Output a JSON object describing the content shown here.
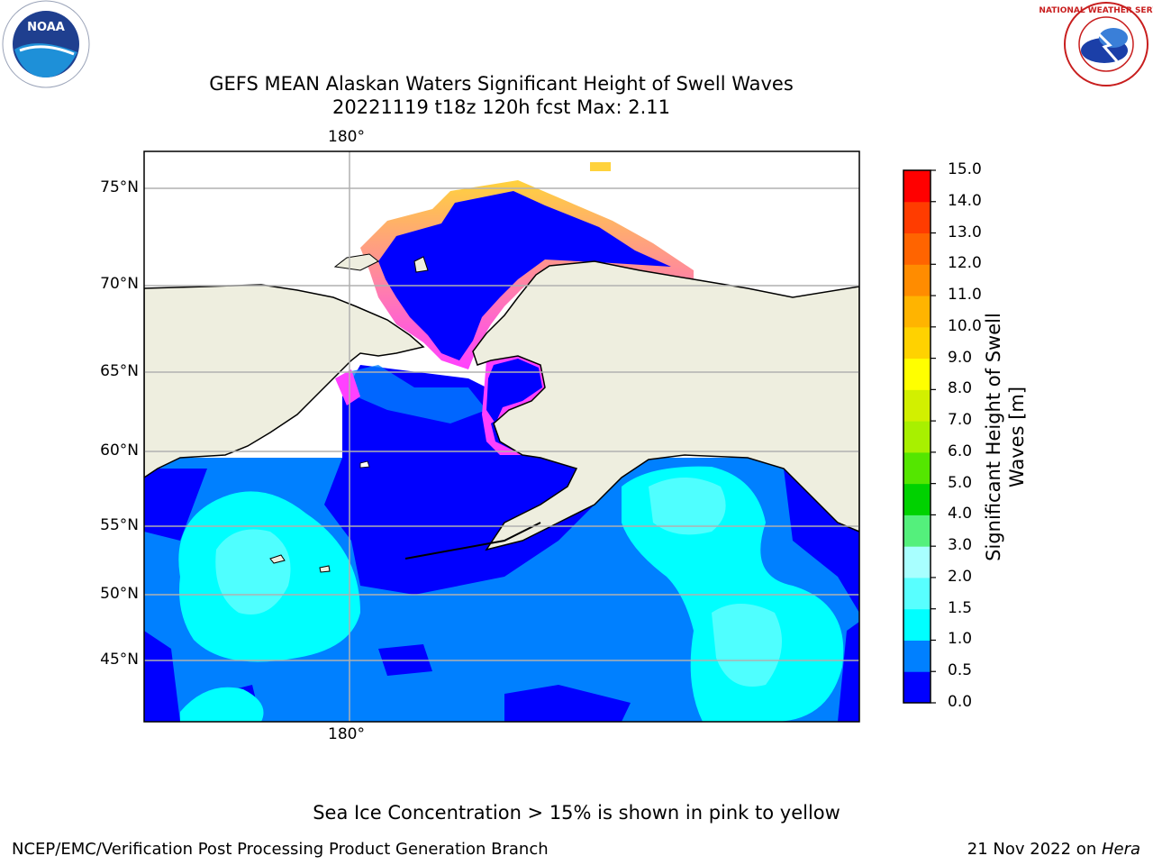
{
  "title": {
    "line1": "GEFS MEAN Alaskan Waters Significant Height of Swell Waves",
    "line2": "20221119 t18z 120h fcst   Max: 2.11"
  },
  "map": {
    "lon_labels": [
      "180°",
      "180°"
    ],
    "lat_labels": [
      "75°N",
      "70°N",
      "65°N",
      "60°N",
      "55°N",
      "50°N",
      "45°N"
    ]
  },
  "colorbar": {
    "label": "Significant Height of Swell Waves [m]",
    "label_line1": "Significant Height of Swell",
    "label_line2": "Waves [m]",
    "ticks": [
      "15.0",
      "14.0",
      "13.0",
      "12.0",
      "11.0",
      "10.0",
      "9.0",
      "8.0",
      "7.0",
      "6.0",
      "5.0",
      "4.0",
      "3.0",
      "2.0",
      "1.5",
      "1.0",
      "0.5",
      "0.0"
    ],
    "colors": [
      "#0000ff",
      "#0080ff",
      "#00ffff",
      "#58ffff",
      "#a8ffff",
      "#54f07c",
      "#00d200",
      "#54e600",
      "#a8f000",
      "#d2f000",
      "#ffff00",
      "#ffd200",
      "#ffb400",
      "#ff8c00",
      "#ff6400",
      "#ff3c00",
      "#ff0000"
    ]
  },
  "note": "Sea Ice Concentration > 15% is shown in pink to yellow",
  "footer": {
    "left": "NCEP/EMC/Verification Post Processing Product Generation Branch",
    "right_date": "21 Nov 2022 on ",
    "right_host": "Hera"
  },
  "logos": {
    "noaa": "NOAA",
    "nws": "NATIONAL WEATHER SERVICE"
  }
}
